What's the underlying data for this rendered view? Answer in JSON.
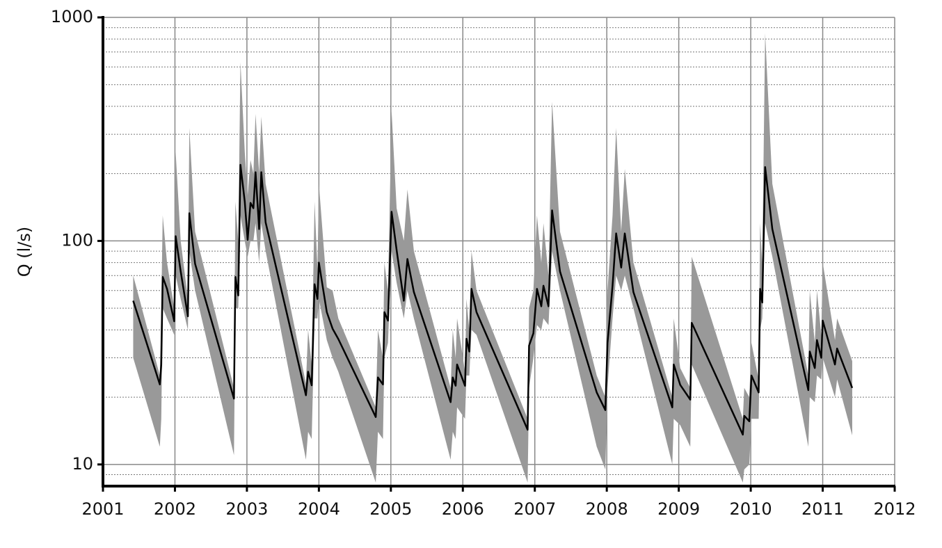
{
  "chart_data": {
    "type": "line",
    "ylabel": "Q (l/s)",
    "x": [
      2001.42,
      2001.79,
      2001.81,
      2001.83,
      2001.89,
      2001.99,
      2002.01,
      2002.08,
      2002.18,
      2002.2,
      2002.28,
      2002.82,
      2002.84,
      2002.88,
      2002.91,
      2002.97,
      2003.01,
      2003.05,
      2003.09,
      2003.12,
      2003.17,
      2003.2,
      2003.26,
      2003.82,
      2003.85,
      2003.9,
      2003.94,
      2003.98,
      2004.0,
      2004.11,
      2004.19,
      2004.27,
      2004.79,
      2004.82,
      2004.89,
      2004.91,
      2004.96,
      2005.01,
      2005.08,
      2005.18,
      2005.23,
      2005.32,
      2005.83,
      2005.86,
      2005.9,
      2005.92,
      2006.03,
      2006.05,
      2006.09,
      2006.12,
      2006.19,
      2006.9,
      2006.92,
      2006.98,
      2007.03,
      2007.09,
      2007.12,
      2007.19,
      2007.24,
      2007.35,
      2007.86,
      2007.98,
      2008.01,
      2008.08,
      2008.13,
      2008.2,
      2008.25,
      2008.37,
      2008.91,
      2008.93,
      2009.02,
      2009.16,
      2009.18,
      2009.89,
      2009.91,
      2009.98,
      2010.01,
      2010.11,
      2010.13,
      2010.16,
      2010.2,
      2010.3,
      2010.8,
      2010.82,
      2010.89,
      2010.92,
      2010.98,
      2011.0,
      2011.17,
      2011.2,
      2011.41
    ],
    "series": [
      {
        "color": "#000000",
        "values": [
          54,
          22.8,
          28,
          69,
          61,
          43.7,
          105,
          73,
          46,
          133,
          79,
          19.7,
          69,
          57,
          219,
          150,
          101,
          148,
          140,
          203,
          113,
          203,
          121,
          20.4,
          26,
          22.6,
          64,
          55,
          80,
          48,
          40.5,
          36.4,
          16.3,
          24.5,
          22.8,
          48,
          44,
          135,
          91,
          54,
          83,
          59,
          19,
          24.5,
          22.5,
          28,
          22.5,
          36.5,
          32,
          61,
          48,
          14.3,
          34,
          38.6,
          61,
          51,
          63,
          51,
          137,
          73,
          21,
          17.5,
          35,
          63,
          108,
          76,
          108,
          59,
          18,
          28,
          22.7,
          19.5,
          43,
          13.6,
          16.5,
          15.6,
          25,
          21,
          61,
          53,
          214,
          113,
          21.5,
          32,
          27,
          36,
          30,
          44,
          28,
          33,
          22
        ]
      }
    ],
    "band": {
      "color": "#999999",
      "lower": [
        30,
        12,
        16,
        50,
        45,
        38,
        70,
        55,
        40,
        90,
        60,
        11,
        50,
        50,
        130,
        100,
        85,
        100,
        100,
        120,
        80,
        120,
        90,
        10.5,
        14,
        13,
        45,
        45,
        55,
        36,
        30,
        26,
        8.3,
        14,
        13,
        30,
        35,
        90,
        65,
        45,
        60,
        45,
        10.5,
        14,
        13,
        18,
        16,
        25,
        25,
        40,
        38,
        8.3,
        22,
        30,
        42,
        40,
        45,
        42,
        90,
        60,
        12,
        9.5,
        22,
        45,
        70,
        60,
        70,
        50,
        10,
        16,
        15,
        12,
        28,
        8.3,
        9.5,
        10,
        16,
        16,
        40,
        45,
        120,
        85,
        12,
        20,
        19,
        25,
        24,
        30,
        20,
        24,
        13.5
      ],
      "upper": [
        70,
        25,
        50,
        130,
        80,
        50,
        250,
        100,
        55,
        320,
        110,
        22,
        150,
        100,
        630,
        250,
        160,
        230,
        200,
        370,
        200,
        360,
        180,
        23,
        40,
        28,
        150,
        75,
        180,
        62,
        60,
        45,
        18,
        40,
        30,
        80,
        60,
        380,
        140,
        100,
        170,
        90,
        22,
        40,
        30,
        45,
        26,
        55,
        40,
        90,
        60,
        16,
        50,
        60,
        130,
        80,
        120,
        70,
        420,
        110,
        25,
        20,
        60,
        130,
        320,
        110,
        210,
        80,
        20,
        45,
        27,
        22,
        85,
        16,
        22,
        20,
        35,
        24,
        120,
        80,
        850,
        180,
        25,
        60,
        35,
        60,
        38,
        80,
        36,
        45,
        29
      ]
    },
    "xlim": [
      2001,
      2012
    ],
    "xticks": [
      2001,
      2002,
      2003,
      2004,
      2005,
      2006,
      2007,
      2008,
      2009,
      2010,
      2011,
      2012
    ],
    "ylim": [
      8,
      1000
    ],
    "yticks": [
      10,
      100,
      1000
    ],
    "yminor": [
      9,
      20,
      30,
      40,
      50,
      60,
      70,
      80,
      90,
      200,
      300,
      400,
      500,
      600,
      700,
      800,
      900
    ],
    "log_y": true,
    "grid": true
  }
}
